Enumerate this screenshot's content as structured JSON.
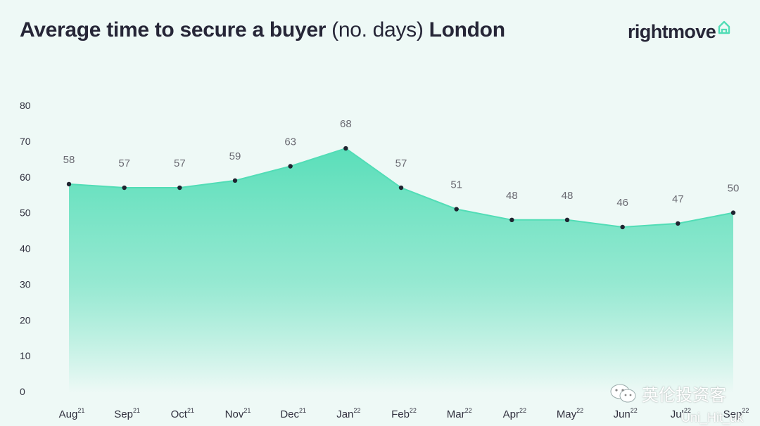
{
  "title": {
    "bold_part": "Average time to secure a buyer",
    "regular_part": "(no. days)",
    "location": "London"
  },
  "brand": {
    "name": "rightmove",
    "logo_icon": "house-outline-icon",
    "accent_color": "#52ddb6",
    "text_color": "#262637"
  },
  "watermark": {
    "text": "英伦投资客",
    "sub": "Uni_Hit_uk",
    "icon": "wechat-icon"
  },
  "chart_data": {
    "type": "area",
    "categories": [
      "Aug",
      "Sep",
      "Oct",
      "Nov",
      "Dec",
      "Jan",
      "Feb",
      "Mar",
      "Apr",
      "May",
      "Jun",
      "Jul",
      "Sep"
    ],
    "category_year": [
      "21",
      "21",
      "21",
      "21",
      "21",
      "22",
      "22",
      "22",
      "22",
      "22",
      "22",
      "22",
      "22"
    ],
    "values": [
      58,
      57,
      57,
      59,
      63,
      68,
      57,
      51,
      48,
      48,
      46,
      47,
      50
    ],
    "ylim": [
      0,
      80
    ],
    "yticks": [
      0,
      10,
      20,
      30,
      40,
      50,
      60,
      70,
      80
    ],
    "grid": false,
    "legend": "none",
    "fill_color": "#52ddb6"
  }
}
